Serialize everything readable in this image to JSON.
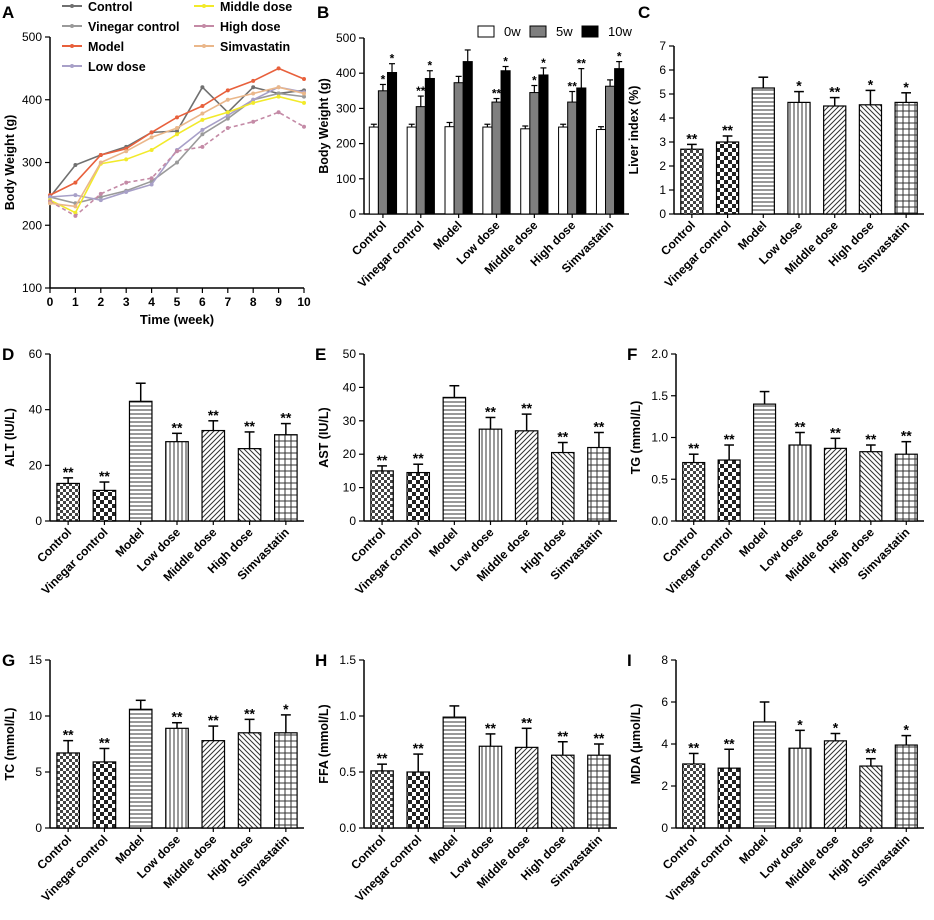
{
  "figure": {
    "colors": {
      "axis": "#000000",
      "bar_dark": "#444444"
    }
  },
  "chart_data": [
    {
      "panel": "A",
      "type": "line",
      "xlabel": "Time (week)",
      "ylabel": "Body Weight (g)",
      "ylim": [
        100,
        500
      ],
      "yticks": [
        100,
        200,
        300,
        400,
        500
      ],
      "xlim": [
        0,
        10
      ],
      "x": [
        0,
        1,
        2,
        3,
        4,
        5,
        6,
        7,
        8,
        9,
        10
      ],
      "series": [
        {
          "name": "Control",
          "color": "#707070",
          "marker": "dot",
          "values": [
            245,
            296,
            312,
            325,
            348,
            350,
            420,
            380,
            420,
            410,
            415
          ]
        },
        {
          "name": "Vinegar control",
          "color": "#9a9a9a",
          "marker": "dot",
          "values": [
            245,
            235,
            245,
            255,
            270,
            300,
            345,
            370,
            400,
            410,
            405
          ]
        },
        {
          "name": "Model",
          "color": "#e8603c",
          "marker": "dot",
          "values": [
            248,
            268,
            312,
            322,
            348,
            372,
            390,
            415,
            430,
            450,
            433
          ]
        },
        {
          "name": "Low dose",
          "color": "#a8a0c8",
          "marker": "dot",
          "values": [
            245,
            248,
            240,
            253,
            265,
            320,
            352,
            375,
            400,
            420,
            412
          ]
        },
        {
          "name": "Middle dose",
          "color": "#f2ea2a",
          "marker": "dot",
          "values": [
            240,
            220,
            298,
            305,
            320,
            345,
            368,
            380,
            395,
            405,
            395
          ]
        },
        {
          "name": "High dose",
          "color": "#c48aa6",
          "marker": "dash",
          "values": [
            238,
            215,
            250,
            268,
            275,
            318,
            325,
            355,
            365,
            380,
            357
          ]
        },
        {
          "name": "Simvastatin",
          "color": "#eab78a",
          "marker": "dot",
          "values": [
            235,
            230,
            300,
            318,
            340,
            355,
            378,
            400,
            410,
            420,
            410
          ]
        }
      ]
    },
    {
      "panel": "B",
      "type": "bar",
      "ylabel": "Body Weight (g)",
      "ylim": [
        0,
        500
      ],
      "yticks": [
        0,
        100,
        200,
        300,
        400,
        500
      ],
      "categories": [
        "Control",
        "Vinegar control",
        "Model",
        "Low dose",
        "Middle dose",
        "High dose",
        "Simvastatin"
      ],
      "series": [
        {
          "name": "0w",
          "color": "#ffffff",
          "values": [
            247,
            247,
            248,
            247,
            242,
            247,
            240
          ],
          "errors": [
            8,
            8,
            12,
            8,
            8,
            8,
            8
          ],
          "sig": [
            "",
            "",
            "",
            "",
            "",
            "",
            ""
          ]
        },
        {
          "name": "5w",
          "color": "#7f7f7f",
          "values": [
            350,
            305,
            373,
            318,
            345,
            318,
            363
          ],
          "errors": [
            18,
            30,
            18,
            10,
            20,
            30,
            18
          ],
          "sig": [
            "*",
            "**",
            "",
            "**",
            "*",
            "**",
            ""
          ]
        },
        {
          "name": "10w",
          "color": "#000000",
          "values": [
            402,
            385,
            433,
            407,
            395,
            358,
            413
          ],
          "errors": [
            25,
            22,
            33,
            12,
            20,
            55,
            20
          ],
          "sig": [
            "*",
            "*",
            "",
            "*",
            "*",
            "**",
            "*"
          ]
        }
      ]
    },
    {
      "panel": "C",
      "type": "bar",
      "ylabel": "Liver index (%)",
      "ylim": [
        0,
        7
      ],
      "yticks": [
        0,
        1,
        2,
        3,
        4,
        5,
        6,
        7
      ],
      "ytick_labels": [
        "0",
        "1",
        "2",
        "3",
        "4",
        "5",
        "6",
        "7"
      ],
      "categories": [
        "Control",
        "Vinegar control",
        "Model",
        "Low dose",
        "Middle dose",
        "High dose",
        "Simvastatin"
      ],
      "values": [
        2.7,
        3.0,
        5.25,
        4.65,
        4.5,
        4.55,
        4.65
      ],
      "errors": [
        0.2,
        0.25,
        0.45,
        0.45,
        0.35,
        0.6,
        0.4
      ],
      "sig": [
        "**",
        "**",
        "",
        "*",
        "**",
        "*",
        "*"
      ]
    },
    {
      "panel": "D",
      "type": "bar",
      "ylabel": "ALT (IU/L)",
      "ylim": [
        0,
        60
      ],
      "yticks": [
        0,
        20,
        40,
        60
      ],
      "ytick_labels": [
        "0",
        "20",
        "40",
        "60"
      ],
      "categories": [
        "Control",
        "Vinegar control",
        "Model",
        "Low dose",
        "Middle dose",
        "High dose",
        "Simvastatin"
      ],
      "values": [
        13.5,
        11,
        43,
        28.5,
        32.5,
        26,
        31
      ],
      "errors": [
        2,
        3,
        6.5,
        3,
        3.5,
        6,
        4
      ],
      "sig": [
        "**",
        "**",
        "",
        "**",
        "**",
        "**",
        "**"
      ]
    },
    {
      "panel": "E",
      "type": "bar",
      "ylabel": "AST (IU/L)",
      "ylim": [
        0,
        50
      ],
      "yticks": [
        0,
        10,
        20,
        30,
        40,
        50
      ],
      "ytick_labels": [
        "0",
        "10",
        "20",
        "30",
        "40",
        "50"
      ],
      "categories": [
        "Control",
        "Vinegar control",
        "Model",
        "Low dose",
        "Middle dose",
        "High dose",
        "Simvastatin"
      ],
      "values": [
        15,
        14.5,
        37,
        27.5,
        27,
        20.5,
        22
      ],
      "errors": [
        1.5,
        2.5,
        3.5,
        3.5,
        5,
        3,
        4.5
      ],
      "sig": [
        "**",
        "**",
        "",
        "**",
        "**",
        "**",
        "**"
      ]
    },
    {
      "panel": "F",
      "type": "bar",
      "ylabel": "TG (mmol/L)",
      "ylim": [
        0,
        2
      ],
      "yticks": [
        0,
        0.5,
        1,
        1.5,
        2
      ],
      "ytick_labels": [
        "0.0",
        "0.5",
        "1.0",
        "1.5",
        "2.0"
      ],
      "categories": [
        "Control",
        "Vinegar control",
        "Model",
        "Low dose",
        "Middle dose",
        "High dose",
        "Simvastatin"
      ],
      "values": [
        0.7,
        0.73,
        1.4,
        0.91,
        0.87,
        0.83,
        0.8
      ],
      "errors": [
        0.1,
        0.18,
        0.15,
        0.15,
        0.12,
        0.08,
        0.15
      ],
      "sig": [
        "**",
        "**",
        "",
        "**",
        "**",
        "**",
        "**"
      ]
    },
    {
      "panel": "G",
      "type": "bar",
      "ylabel": "TC (mmol/L)",
      "ylim": [
        0,
        15
      ],
      "yticks": [
        0,
        5,
        10,
        15
      ],
      "ytick_labels": [
        "0",
        "5",
        "10",
        "15"
      ],
      "categories": [
        "Control",
        "Vinegar control",
        "Model",
        "Low dose",
        "Middle dose",
        "High dose",
        "Simvastatin"
      ],
      "values": [
        6.7,
        5.9,
        10.6,
        8.9,
        7.8,
        8.5,
        8.5
      ],
      "errors": [
        1.1,
        1.2,
        0.8,
        0.5,
        1.3,
        1.2,
        1.6
      ],
      "sig": [
        "**",
        "**",
        "",
        "**",
        "**",
        "**",
        "*"
      ]
    },
    {
      "panel": "H",
      "type": "bar",
      "ylabel": "FFA (mmol/L)",
      "ylim": [
        0,
        1.5
      ],
      "yticks": [
        0,
        0.5,
        1,
        1.5
      ],
      "ytick_labels": [
        "0.0",
        "0.5",
        "1.0",
        "1.5"
      ],
      "categories": [
        "Control",
        "Vinegar control",
        "Model",
        "Low dose",
        "Middle dose",
        "High dose",
        "Simvastatin"
      ],
      "values": [
        0.51,
        0.5,
        0.99,
        0.73,
        0.72,
        0.65,
        0.65
      ],
      "errors": [
        0.06,
        0.16,
        0.1,
        0.11,
        0.17,
        0.12,
        0.1
      ],
      "sig": [
        "**",
        "**",
        "",
        "**",
        "**",
        "**",
        "**"
      ]
    },
    {
      "panel": "I",
      "type": "bar",
      "ylabel": "MDA (μmol/L)",
      "ylim": [
        0,
        8
      ],
      "yticks": [
        0,
        2,
        4,
        6,
        8
      ],
      "ytick_labels": [
        "0",
        "2",
        "4",
        "6",
        "8"
      ],
      "categories": [
        "Control",
        "Vinegar control",
        "Model",
        "Low dose",
        "Middle dose",
        "High dose",
        "Simvastatin"
      ],
      "values": [
        3.05,
        2.85,
        5.05,
        3.8,
        4.15,
        2.95,
        3.95
      ],
      "errors": [
        0.5,
        0.9,
        0.95,
        0.85,
        0.35,
        0.35,
        0.45
      ],
      "sig": [
        "**",
        "**",
        "",
        "*",
        "*",
        "**",
        "*"
      ]
    }
  ]
}
